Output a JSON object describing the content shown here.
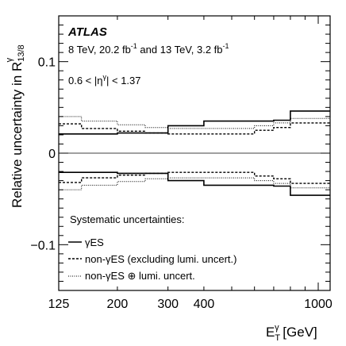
{
  "chart_data": {
    "type": "line",
    "step": true,
    "xscale": "log",
    "xlim": [
      125,
      1100
    ],
    "ylim": [
      -0.15,
      0.15
    ],
    "bin_edges": [
      125,
      150,
      200,
      250,
      300,
      400,
      600,
      700,
      800,
      1000,
      1100
    ],
    "xticks": [
      {
        "value": 125,
        "label": "125"
      },
      {
        "value": 200,
        "label": "200"
      },
      {
        "value": 300,
        "label": "300"
      },
      {
        "value": 400,
        "label": "400"
      },
      {
        "value": 1000,
        "label": "1000"
      }
    ],
    "yticks": [
      {
        "value": -0.1,
        "label": "−0.1"
      },
      {
        "value": 0,
        "label": "0"
      },
      {
        "value": 0.1,
        "label": "0.1"
      }
    ],
    "ylabel_main": "Relative uncertainty in R",
    "ylabel_sup": "γ",
    "ylabel_sub": "13/8",
    "xlabel_main": "E",
    "xlabel_sup": "γ",
    "xlabel_sub": "T",
    "xlabel_unit": " [GeV]",
    "atlas_label": "ATLAS",
    "energy_label_1": "8 TeV, 20.2 fb",
    "energy_label_1_sup": "-1",
    "energy_label_2": " and 13 TeV, 3.2 fb",
    "energy_label_2_sup": "-1",
    "eta_label_pre": "0.6 < |η",
    "eta_label_sup": "γ",
    "eta_label_post": "| < 1.37",
    "legend_title": "Systematic uncertainties:",
    "legend_placement": "bottom-left",
    "series": [
      {
        "name": "γES",
        "style": "solid",
        "symmetric": true,
        "values": [
          0.021,
          0.021,
          0.022,
          0.022,
          0.03,
          0.035,
          0.035,
          0.036,
          0.046,
          0.046
        ]
      },
      {
        "name": "non-γES (excluding lumi. uncert.)",
        "style": "dashed",
        "symmetric": true,
        "values": [
          0.032,
          0.027,
          0.024,
          0.022,
          0.021,
          0.021,
          0.025,
          0.028,
          0.033,
          0.033
        ]
      },
      {
        "name": "non-γES ⊕ lumi. uncert.",
        "style": "dotted",
        "symmetric": true,
        "values": [
          0.04,
          0.035,
          0.031,
          0.028,
          0.027,
          0.027,
          0.03,
          0.033,
          0.038,
          0.038
        ]
      }
    ]
  }
}
